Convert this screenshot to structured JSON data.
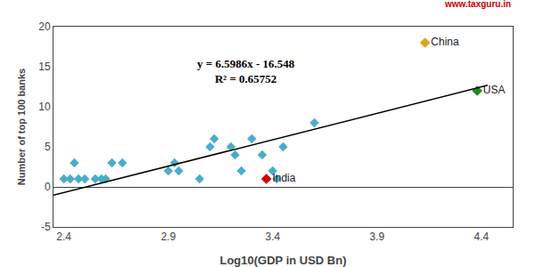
{
  "chart_data": {
    "type": "scatter",
    "xlabel": "Log10(GDP in USD Bn)",
    "ylabel": "Number of top 100 banks",
    "xlim": [
      2.35,
      4.55
    ],
    "ylim": [
      -5,
      20
    ],
    "xticks": [
      2.4,
      2.9,
      3.4,
      3.9,
      4.4
    ],
    "yticks": [
      -5,
      0,
      5,
      10,
      15,
      20
    ],
    "grid": false,
    "series": [
      {
        "type": "scatter",
        "color": "#4BACC6",
        "marker": "diamond",
        "x": [
          2.4,
          2.43,
          2.45,
          2.47,
          2.5,
          2.55,
          2.58,
          2.6,
          2.63,
          2.68,
          2.9,
          2.93,
          2.95,
          3.05,
          3.1,
          3.12,
          3.2,
          3.22,
          3.25,
          3.3,
          3.35,
          3.4,
          3.42,
          3.45,
          3.6
        ],
        "values": [
          1,
          1,
          3,
          1,
          1,
          1,
          1,
          1,
          3,
          3,
          2,
          3,
          2,
          1,
          5,
          6,
          5,
          4,
          2,
          6,
          4,
          2,
          1,
          5,
          8
        ]
      },
      {
        "type": "scatter",
        "name": "China",
        "color": "#DAA520",
        "marker": "diamond",
        "x": [
          4.13
        ],
        "values": [
          18
        ]
      },
      {
        "type": "scatter",
        "name": "USA",
        "color": "#228B22",
        "marker": "diamond",
        "x": [
          4.38
        ],
        "values": [
          12
        ]
      },
      {
        "type": "scatter",
        "name": "India",
        "color": "#CC0000",
        "marker": "diamond",
        "x": [
          3.37
        ],
        "values": [
          1
        ]
      },
      {
        "type": "line",
        "color": "#000000",
        "line_style": "solid",
        "x": [
          2.35,
          4.43
        ],
        "values": [
          -1.04129,
          12.683798
        ]
      }
    ],
    "annotations": [
      "y = 6.5986x - 16.548",
      "R² = 0.65752"
    ],
    "watermark": {
      "text": "www.taxguru.in",
      "color": "#CC0000"
    }
  }
}
